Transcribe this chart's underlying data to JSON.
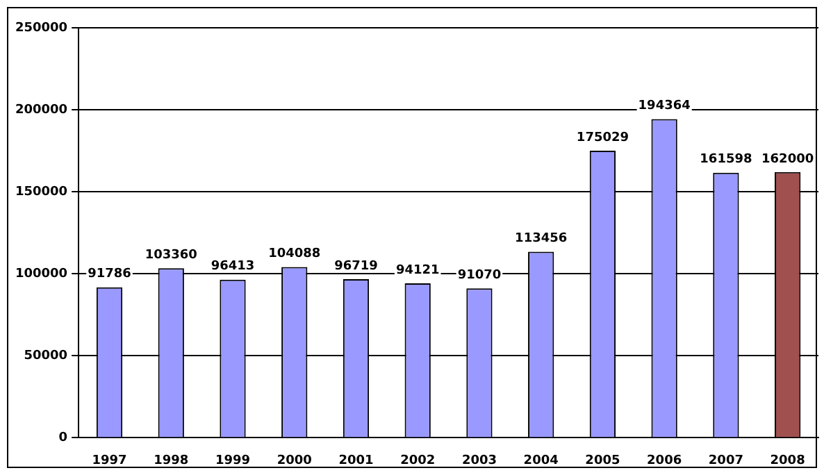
{
  "chart_data": {
    "type": "bar",
    "categories": [
      "1997",
      "1998",
      "1999",
      "2000",
      "2001",
      "2002",
      "2003",
      "2004",
      "2005",
      "2006",
      "2007",
      "2008"
    ],
    "values": [
      91786,
      103360,
      96413,
      104088,
      96719,
      94121,
      91070,
      113456,
      175029,
      194364,
      161598,
      162000
    ],
    "colors": [
      "#9999ff",
      "#9999ff",
      "#9999ff",
      "#9999ff",
      "#9999ff",
      "#9999ff",
      "#9999ff",
      "#9999ff",
      "#9999ff",
      "#9999ff",
      "#9999ff",
      "#a0504f"
    ],
    "ylim": [
      0,
      250000
    ],
    "yticks": [
      0,
      50000,
      100000,
      150000,
      200000,
      250000
    ],
    "grid": "y",
    "data_labels": true,
    "legend": false
  }
}
